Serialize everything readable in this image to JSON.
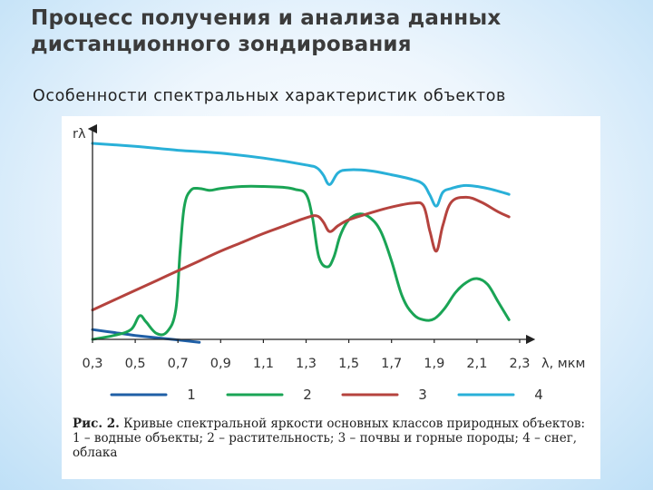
{
  "slide": {
    "title": "Процесс получения и анализа данных дистанционного зондирования",
    "subtitle": "Особенности спектральных характеристик объектов"
  },
  "caption": {
    "label": "Рис. 2.",
    "text": " Кривые спектральной яркости основных классов природных объектов: ",
    "items": "1 – водные объекты; 2 – растительность; 3 – почвы и горные породы; 4 – снег, облака"
  },
  "colors": {
    "series1": "#1f5fa6",
    "series2": "#1aa455",
    "series3": "#b5433e",
    "series4": "#29b0d8",
    "axis": "#222222"
  },
  "chart_data": {
    "type": "line",
    "title": "",
    "xlabel": "λ, мкм",
    "ylabel": "rλ",
    "xlim": [
      0.3,
      2.3
    ],
    "ylim": [
      0,
      100
    ],
    "xticks": [
      "0,3",
      "0,5",
      "0,7",
      "0,9",
      "1,1",
      "1,3",
      "1,5",
      "1,7",
      "1,9",
      "2,1",
      "2,3"
    ],
    "xtick_values": [
      0.3,
      0.5,
      0.7,
      0.9,
      1.1,
      1.3,
      1.5,
      1.7,
      1.9,
      2.1,
      2.3
    ],
    "legend_position": "bottom",
    "series": [
      {
        "name": "1",
        "x": [
          0.3,
          0.4,
          0.5,
          0.6,
          0.7,
          0.8
        ],
        "y": [
          5,
          3.5,
          2,
          0.8,
          -0.3,
          -1.5
        ]
      },
      {
        "name": "2",
        "x": [
          0.3,
          0.4,
          0.48,
          0.52,
          0.55,
          0.6,
          0.65,
          0.69,
          0.71,
          0.73,
          0.76,
          0.8,
          0.85,
          0.9,
          1.0,
          1.1,
          1.2,
          1.25,
          1.3,
          1.33,
          1.36,
          1.4,
          1.43,
          1.46,
          1.5,
          1.55,
          1.6,
          1.65,
          1.7,
          1.75,
          1.8,
          1.85,
          1.9,
          1.95,
          2.0,
          2.05,
          2.1,
          2.15,
          2.2,
          2.25
        ],
        "y": [
          0,
          2,
          5,
          12,
          9,
          3,
          4,
          15,
          45,
          68,
          76,
          77,
          76,
          77,
          78,
          78,
          77.5,
          76.5,
          74,
          62,
          42,
          37,
          42,
          53,
          61,
          64,
          62,
          55,
          40,
          22,
          13,
          10,
          10.5,
          16,
          24,
          29,
          31,
          28,
          19,
          10
        ]
      },
      {
        "name": "3",
        "x": [
          0.3,
          0.4,
          0.5,
          0.6,
          0.7,
          0.8,
          0.9,
          1.0,
          1.1,
          1.2,
          1.3,
          1.35,
          1.38,
          1.41,
          1.45,
          1.5,
          1.6,
          1.7,
          1.8,
          1.85,
          1.88,
          1.91,
          1.94,
          1.98,
          2.05,
          2.12,
          2.2,
          2.25
        ],
        "y": [
          15,
          20,
          25,
          30,
          35,
          40,
          45,
          49.5,
          54,
          58,
          62,
          63,
          60,
          55,
          58,
          61,
          64.5,
          67.5,
          69.5,
          68,
          55,
          45,
          58,
          70,
          72.5,
          70,
          65,
          62.5
        ]
      },
      {
        "name": "4",
        "x": [
          0.3,
          0.5,
          0.7,
          0.9,
          1.1,
          1.3,
          1.35,
          1.38,
          1.41,
          1.45,
          1.5,
          1.6,
          1.7,
          1.8,
          1.85,
          1.88,
          1.91,
          1.94,
          1.98,
          2.05,
          2.15,
          2.25
        ],
        "y": [
          100,
          98.5,
          96.5,
          95,
          92.5,
          89,
          87.5,
          84,
          79,
          85,
          86.5,
          86,
          84,
          81.5,
          79,
          73.5,
          68,
          75,
          77,
          78.5,
          77,
          74
        ]
      }
    ]
  }
}
